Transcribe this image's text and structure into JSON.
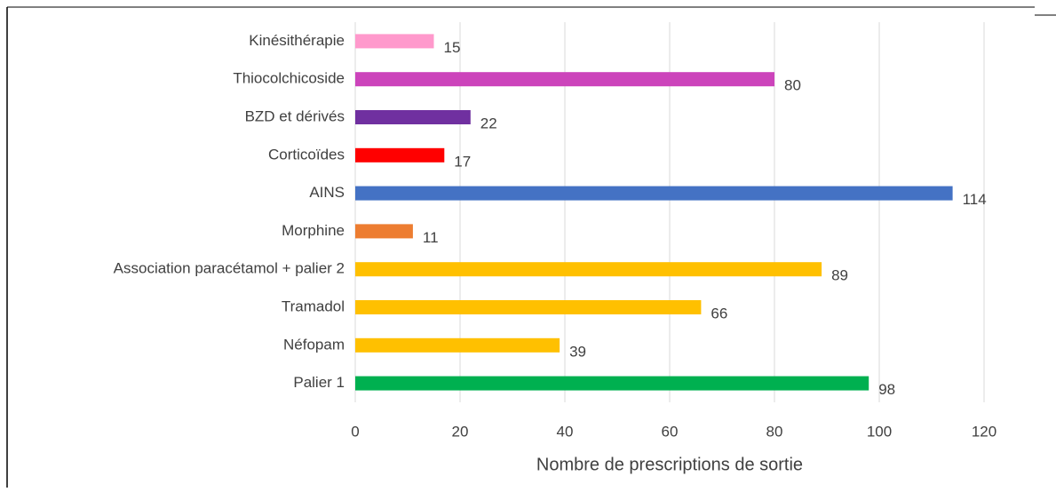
{
  "chart_data": {
    "type": "barh",
    "categories": [
      "Kinésithérapie",
      "Thiocolchicoside",
      "BZD et dérivés",
      "Corticoïdes",
      "AINS",
      "Morphine",
      "Association paracétamol + palier 2",
      "Tramadol",
      "Néfopam",
      "Palier 1"
    ],
    "values": [
      15,
      80,
      22,
      17,
      114,
      11,
      89,
      66,
      39,
      98
    ],
    "colors": [
      "#ff99cc",
      "#cc44bb",
      "#7030a0",
      "#ff0000",
      "#4472c4",
      "#ed7d31",
      "#ffc000",
      "#ffc000",
      "#ffc000",
      "#00b050"
    ],
    "xlabel": "Nombre de prescriptions de sortie",
    "xlim": [
      0,
      120
    ],
    "xticks": [
      0,
      20,
      40,
      60,
      80,
      100,
      120
    ],
    "grid": true
  }
}
